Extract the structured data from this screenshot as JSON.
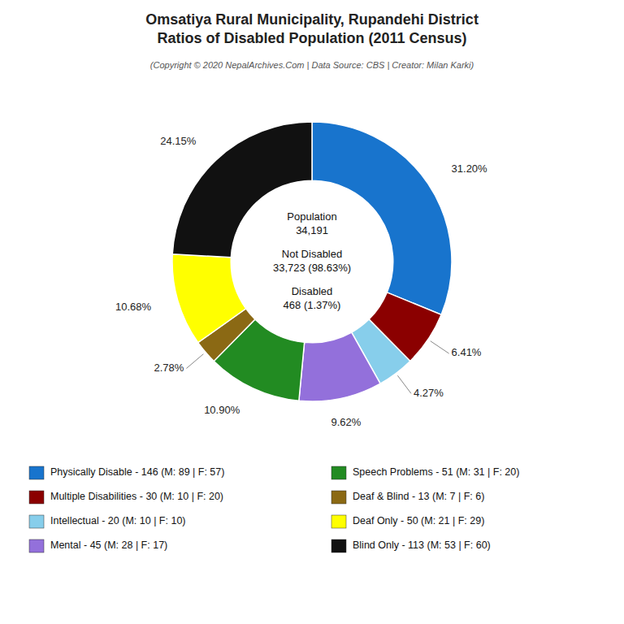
{
  "chart_data": {
    "type": "donut",
    "title": "Omsatiya Rural Municipality, Rupandehi District\nRatios of Disabled Population (2011 Census)",
    "subtitle": "(Copyright © 2020 NepalArchives.Com | Data Source: CBS | Creator: Milan Karki)",
    "categories": [
      "Physically Disable - 146 (M: 89 | F: 57)",
      "Multiple Disabilities - 30 (M: 10 | F: 20)",
      "Intellectual - 20 (M: 10 | F: 10)",
      "Mental - 45 (M: 28 | F: 17)",
      "Speech Problems - 51 (M: 31 | F: 20)",
      "Deaf & Blind - 13 (M: 7 | F: 6)",
      "Deaf Only - 50 (M: 21 | F: 29)",
      "Blind Only - 113 (M: 53 | F: 60)"
    ],
    "values": [
      31.2,
      6.41,
      4.27,
      9.62,
      10.9,
      2.78,
      10.68,
      24.15
    ],
    "value_labels": [
      "31.20%",
      "6.41%",
      "4.27%",
      "9.62%",
      "10.90%",
      "2.78%",
      "10.68%",
      "24.15%"
    ],
    "colors": [
      "#1874CD",
      "#8B0000",
      "#87CEEB",
      "#9370DB",
      "#228B22",
      "#8B6914",
      "#FFFF00",
      "#111111"
    ],
    "data_labels": true,
    "annotations": [
      "Population\n34,191",
      "Not Disabled\n33,723 (98.63%)",
      "Disabled\n468 (1.37%)"
    ]
  }
}
